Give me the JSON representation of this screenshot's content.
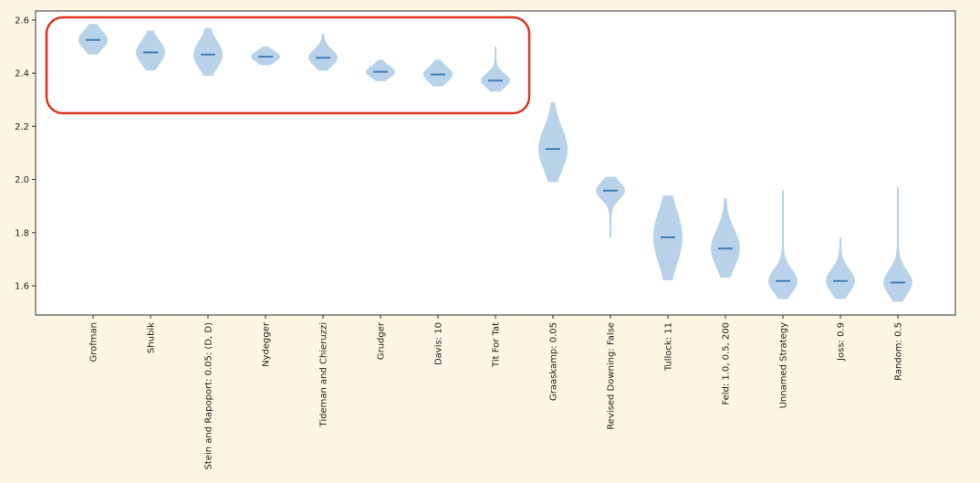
{
  "chart_data": {
    "type": "violin",
    "categories": [
      "Grofman",
      "Shubik",
      "Stein and Rapoport: 0.05: (D, D)",
      "Nydegger",
      "Tideman and Chieruzzi",
      "Grudger",
      "Davis: 10",
      "Tit For Tat",
      "Graaskamp: 0.05",
      "Revised Downing: False",
      "Tullock: 11",
      "Feld: 1.0, 0.5, 200",
      "Unnamed Strategy",
      "Joss: 0.9",
      "Random: 0.5"
    ],
    "medians": [
      2.525,
      2.478,
      2.47,
      2.462,
      2.458,
      2.405,
      2.395,
      2.372,
      2.115,
      1.958,
      1.782,
      1.74,
      1.618,
      1.618,
      1.612
    ],
    "mins": [
      2.47,
      2.41,
      2.39,
      2.43,
      2.41,
      2.37,
      2.35,
      2.33,
      1.99,
      1.78,
      1.62,
      1.63,
      1.55,
      1.55,
      1.54
    ],
    "maxs": [
      2.585,
      2.56,
      2.57,
      2.5,
      2.55,
      2.45,
      2.45,
      2.5,
      2.29,
      2.01,
      1.94,
      1.93,
      1.96,
      1.78,
      1.97
    ],
    "color": "#a6c8e3",
    "median_color": "#3b7fb8",
    "ylim": [
      1.49,
      2.634
    ],
    "yticks": [
      1.6,
      1.8,
      {
        "value": 2,
        "label": "2.0"
      },
      2.2,
      2.4,
      2.6
    ]
  }
}
